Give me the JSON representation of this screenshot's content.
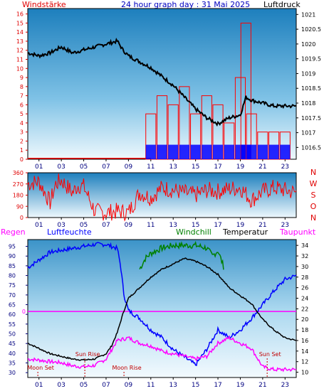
{
  "header": {
    "left_label": "Windstärke",
    "title": "24 hour graph day : 31 Mai 2025",
    "right_label": "Luftdruck"
  },
  "bottom_header": {
    "regen": "Regen",
    "luftfeuchte": "Luftfeuchte",
    "windchill": "Windchill",
    "temperatur": "Temperatur",
    "taupunkt": "Taupunkt"
  },
  "colors": {
    "wind_axis": "#e00000",
    "pressure_line": "#000000",
    "wind_bars": "#ff0000",
    "gust_blue": "#0000ff",
    "humidity": "#0000ff",
    "windchill": "#008000",
    "temperature": "#000000",
    "dewpoint": "#ff00ff",
    "rain": "#ff00ff",
    "sky_top": "#1a7ab8",
    "sky_bottom": "#e6f4fb"
  },
  "x_ticks": [
    "01",
    "03",
    "05",
    "07",
    "09",
    "11",
    "13",
    "15",
    "17",
    "19",
    "21",
    "23"
  ],
  "events": {
    "moon_set": {
      "label": "Moon Set",
      "hour": 0.9
    },
    "sun_rise": {
      "label": "Sun Rise",
      "hour": 5.1
    },
    "moon_rise": {
      "label": "Moon Rise",
      "hour": 8.6
    },
    "sun_set": {
      "label": "Sun Set",
      "hour": 21.4
    }
  },
  "chart_data": [
    {
      "type": "line",
      "name": "Wind speed and air pressure",
      "xlabel": "",
      "x_unit": "hour",
      "y_left": {
        "label": "Windstärke",
        "ticks": [
          0,
          1,
          2,
          3,
          4,
          5,
          6,
          7,
          8,
          9,
          10,
          11,
          12,
          13,
          14,
          15,
          16
        ],
        "ylim": [
          0,
          16.6
        ]
      },
      "y_right": {
        "label": "Luftdruck",
        "ticks": [
          "1016.5",
          "1017",
          "1017.5",
          "1018",
          "1018.5",
          "1019",
          "1019.5",
          "1020",
          "1020.5",
          "1021"
        ],
        "ylim": [
          1016.1,
          1021.2
        ]
      },
      "series": [
        {
          "name": "Luftdruck",
          "axis": "right",
          "x": [
            0,
            1,
            2,
            3,
            4,
            5,
            6,
            7,
            8,
            8.5,
            9,
            10,
            11,
            12,
            13,
            14,
            14.5,
            15,
            16,
            17,
            18,
            19,
            19.5,
            20,
            21,
            22,
            23,
            24
          ],
          "y": [
            1019.7,
            1019.6,
            1019.7,
            1019.9,
            1019.7,
            1019.8,
            1019.9,
            1020.0,
            1020.1,
            1019.8,
            1019.6,
            1019.4,
            1019.2,
            1018.9,
            1018.6,
            1018.2,
            1018.0,
            1017.8,
            1017.5,
            1017.3,
            1017.5,
            1017.6,
            1018.2,
            1018.1,
            1018.0,
            1017.9,
            1017.9,
            1017.9
          ]
        }
      ],
      "bars": {
        "name": "Windstärke",
        "axis": "left",
        "x": [
          11,
          12,
          13,
          14,
          15,
          16,
          17,
          18,
          19,
          19.5,
          20,
          21,
          22,
          23
        ],
        "y": [
          5,
          7,
          6,
          8,
          5,
          7,
          6,
          4,
          9,
          15,
          5,
          3,
          3,
          3
        ]
      }
    },
    {
      "type": "scatter",
      "name": "Wind direction",
      "xlabel": "",
      "x_unit": "hour",
      "y_left": {
        "ticks": [
          0,
          45,
          90,
          135,
          180,
          225,
          270,
          315,
          360
        ],
        "ylim": [
          0,
          360
        ]
      },
      "y_right": {
        "ticks": [
          "N",
          "W",
          "S",
          "O",
          "N"
        ]
      },
      "series": [
        {
          "name": "Windrichtung",
          "x": [
            0,
            1,
            2,
            2.5,
            3,
            4,
            4.5,
            5,
            6,
            7,
            8,
            9,
            10,
            11,
            12,
            13,
            14,
            15,
            16,
            17,
            18,
            19,
            20,
            21,
            22,
            23,
            24
          ],
          "y": [
            270,
            290,
            120,
            270,
            300,
            200,
            260,
            250,
            50,
            40,
            50,
            40,
            200,
            160,
            240,
            220,
            200,
            180,
            220,
            210,
            230,
            240,
            140,
            210,
            240,
            220,
            200
          ]
        }
      ]
    },
    {
      "type": "line",
      "name": "Humidity, temperature, windchill, dewpoint",
      "xlabel": "",
      "x_unit": "hour",
      "y_left": {
        "label": "Luftfeuchte",
        "ticks": [
          30,
          35,
          40,
          45,
          50,
          55,
          60,
          65,
          70,
          75,
          80,
          85,
          90,
          95
        ],
        "ylim": [
          27.5,
          98.5
        ]
      },
      "y_right": {
        "label": "Temperatur",
        "ticks": [
          10,
          12,
          14,
          16,
          18,
          20,
          22,
          24,
          26,
          28,
          30,
          32,
          34
        ],
        "ylim": [
          9,
          35.1
        ]
      },
      "rain_value": {
        "label": "0",
        "y": 61.5
      },
      "series": [
        {
          "name": "Luftfeuchte",
          "axis": "left",
          "x": [
            0,
            1,
            2,
            3,
            4,
            5,
            6,
            7,
            7.5,
            8,
            8.3,
            8.6,
            9,
            10,
            11,
            12,
            13,
            14,
            15,
            16,
            17,
            18,
            19,
            20,
            21,
            22,
            23,
            24
          ],
          "y": [
            84,
            88,
            92,
            93,
            94,
            95,
            96,
            96,
            95,
            94,
            85,
            70,
            62,
            58,
            52,
            48,
            42,
            38,
            34,
            42,
            52,
            48,
            52,
            58,
            65,
            72,
            78,
            80
          ]
        },
        {
          "name": "Temperatur",
          "axis": "right",
          "x": [
            0,
            1,
            2,
            3,
            4,
            5,
            6,
            7,
            7.5,
            8,
            8.5,
            9,
            10,
            11,
            12,
            13,
            14,
            15,
            16,
            17,
            18,
            19,
            20,
            21,
            22,
            23,
            24
          ],
          "y": [
            15.5,
            14.5,
            13.5,
            13.0,
            12.5,
            12.3,
            12.5,
            13.5,
            15.0,
            17.5,
            21.0,
            24.0,
            26.0,
            28.0,
            29.5,
            30.5,
            31.5,
            31.0,
            30.0,
            28.5,
            26.0,
            24.5,
            23.0,
            20.0,
            18.0,
            16.5,
            16.0
          ]
        },
        {
          "name": "Windchill",
          "axis": "right",
          "x": [
            10,
            10.5,
            11,
            12,
            13,
            14,
            15,
            16,
            16.5,
            17,
            17.5
          ],
          "y": [
            29.5,
            31.5,
            32.5,
            33.5,
            34.0,
            34.0,
            34.0,
            33.5,
            32.0,
            33.0,
            30.0
          ]
        },
        {
          "name": "Taupunkt",
          "axis": "right",
          "x": [
            0,
            1,
            2,
            3,
            4,
            5,
            6,
            7,
            8,
            9,
            10,
            11,
            12,
            13,
            14,
            15,
            16,
            17,
            18,
            19,
            20,
            21,
            22,
            23,
            24
          ],
          "y": [
            12.5,
            12.3,
            12.0,
            11.8,
            11.2,
            11.0,
            11.3,
            12.5,
            16.0,
            16.5,
            15.5,
            15.0,
            14.0,
            13.5,
            13.0,
            12.5,
            13.0,
            15.5,
            16.5,
            15.5,
            14.5,
            11.0,
            10.5,
            10.5,
            10.5
          ]
        }
      ]
    }
  ]
}
